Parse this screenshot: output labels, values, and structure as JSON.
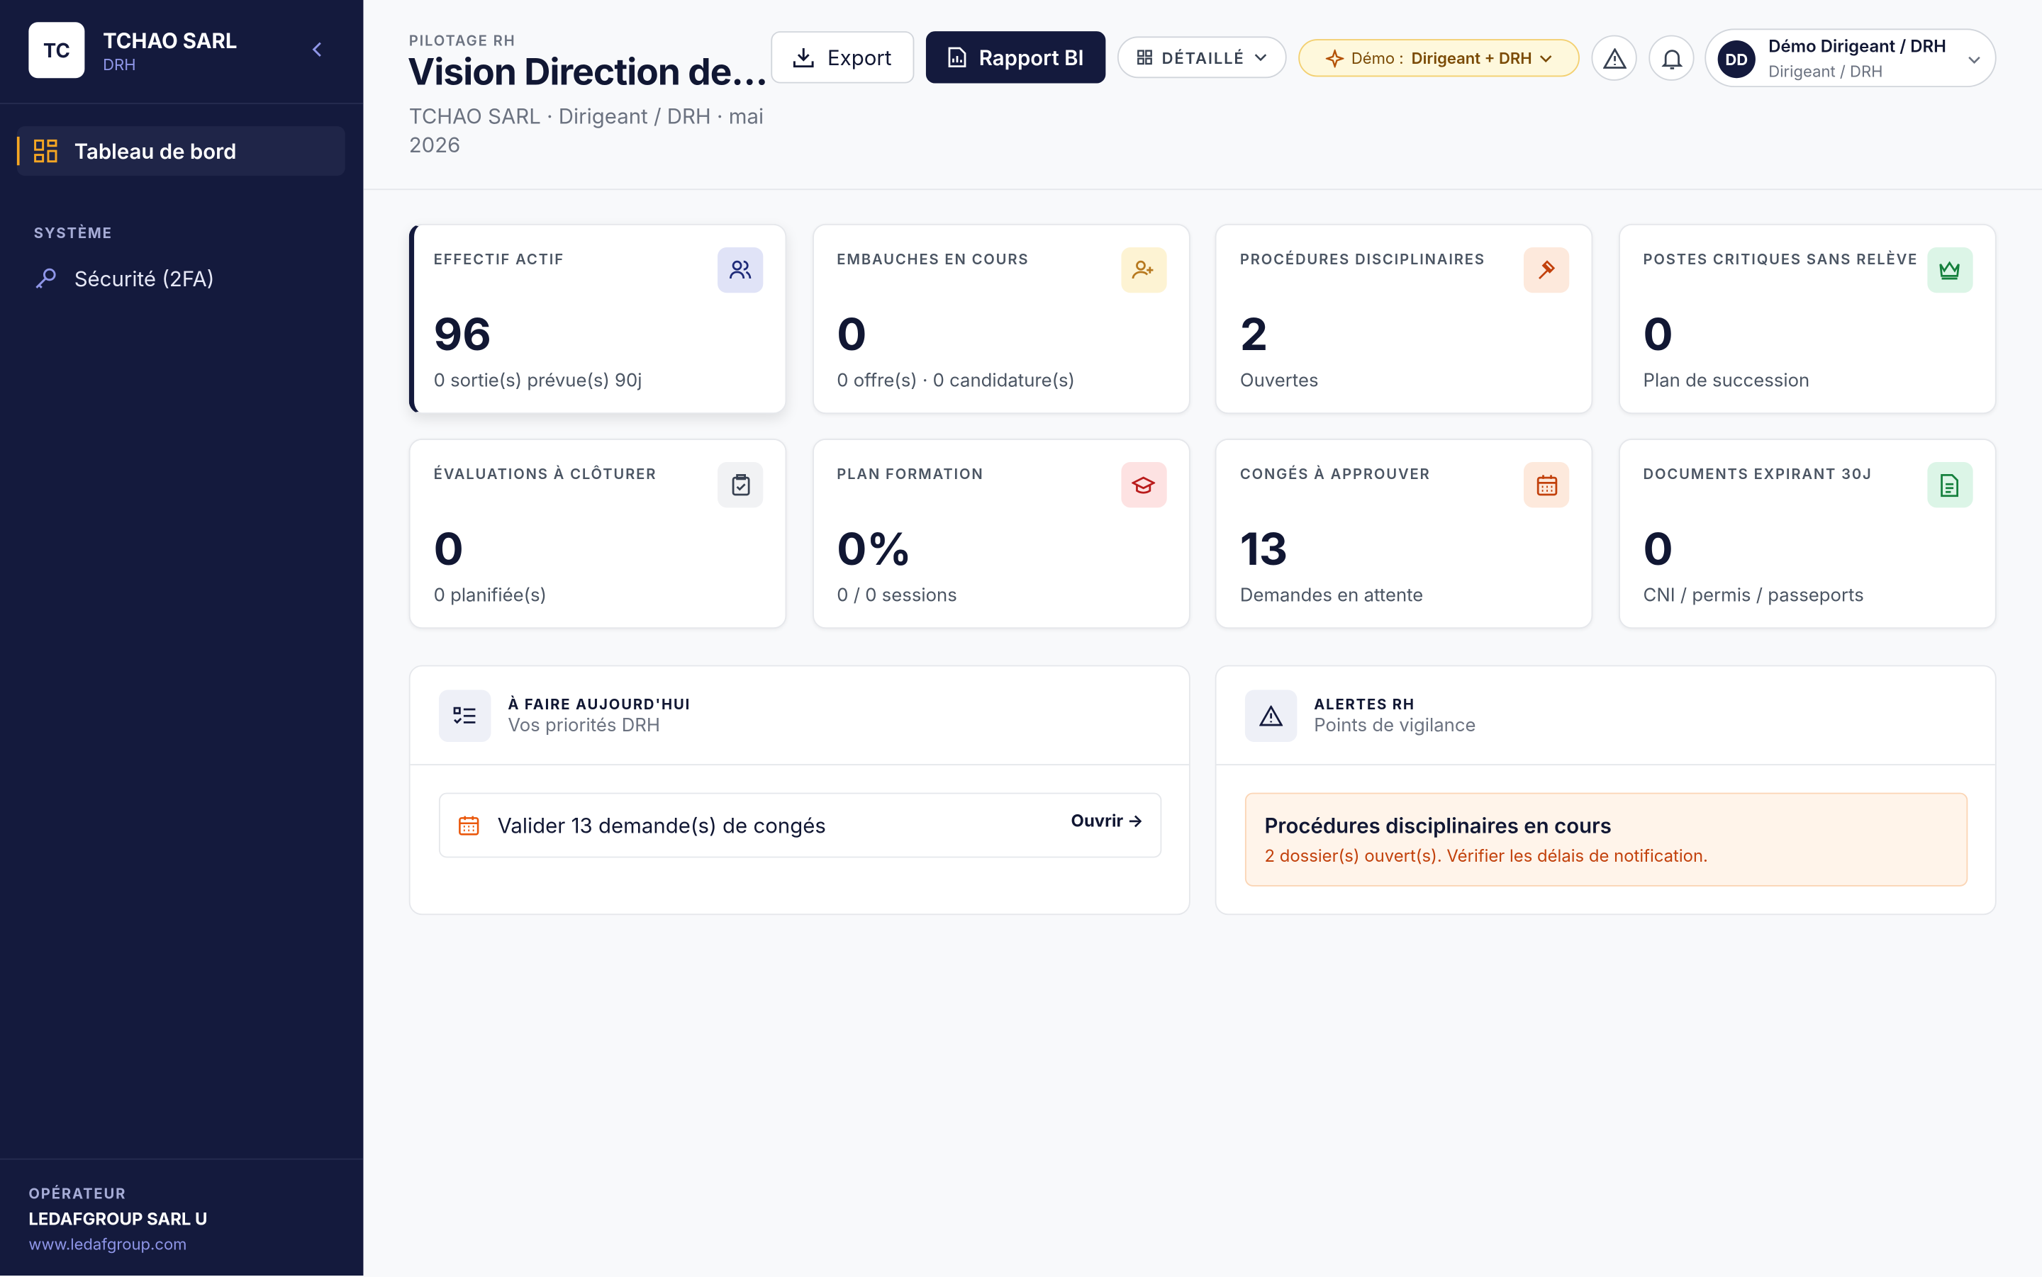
{
  "sidebar": {
    "brand": {
      "initials": "TC",
      "name": "TCHAO SARL",
      "role": "DRH"
    },
    "nav": [
      {
        "label": "Tableau de bord"
      }
    ],
    "section": "SYSTÈME",
    "items": [
      {
        "label": "Sécurité (2FA)"
      }
    ],
    "footer": {
      "label": "OPÉRATEUR",
      "name": "LEDAFGROUP SARL U",
      "url": "www.ledafgroup.com"
    }
  },
  "header": {
    "eyebrow": "PILOTAGE RH",
    "title": "Vision Direction de…",
    "subtitle": "TCHAO SARL · Dirigeant / DRH · mai 2026",
    "actions": {
      "export": "Export",
      "report": "Rapport BI",
      "view": "DÉTAILLÉ",
      "demo": {
        "label": "Démo :",
        "value": "Dirigeant + DRH"
      },
      "user": {
        "initials": "DD",
        "name": "Démo Dirigeant / DRH",
        "role": "Dirigeant / DRH"
      }
    }
  },
  "kpis": [
    {
      "label": "EFFECTIF ACTIF",
      "value": "96",
      "note": "0 sortie(s) prévue(s) 90j"
    },
    {
      "label": "EMBAUCHES EN COURS",
      "value": "0",
      "note": "0 offre(s) · 0 candidature(s)"
    },
    {
      "label": "PROCÉDURES DISCIPLINAIRES",
      "value": "2",
      "note": "Ouvertes"
    },
    {
      "label": "POSTES CRITIQUES SANS RELÈVE",
      "value": "0",
      "note": "Plan de succession"
    },
    {
      "label": "ÉVALUATIONS À CLÔTURER",
      "value": "0",
      "note": "0 planifiée(s)"
    },
    {
      "label": "PLAN FORMATION",
      "value": "0%",
      "note": "0 / 0 sessions"
    },
    {
      "label": "CONGÉS À APPROUVER",
      "value": "13",
      "note": "Demandes en attente"
    },
    {
      "label": "DOCUMENTS EXPIRANT 30J",
      "value": "0",
      "note": "CNI / permis / passeports"
    }
  ],
  "panels": {
    "todo": {
      "title": "À FAIRE AUJOURD'HUI",
      "subtitle": "Vos priorités DRH",
      "items": [
        {
          "text": "Valider 13 demande(s) de congés",
          "action": "Ouvrir →"
        }
      ]
    },
    "alerts": {
      "title": "ALERTES RH",
      "subtitle": "Points de vigilance",
      "items": [
        {
          "title": "Procédures disciplinaires en cours",
          "text": "2 dossier(s) ouvert(s). Vérifier les délais de notification."
        }
      ]
    }
  }
}
